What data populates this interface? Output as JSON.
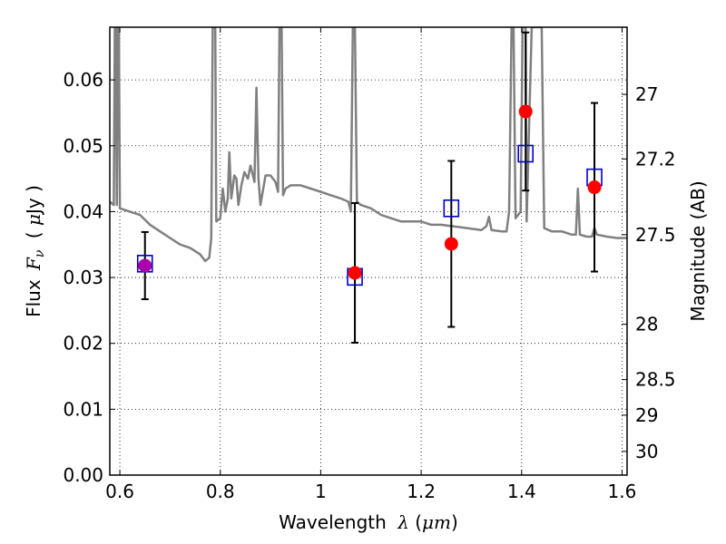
{
  "chart_data": {
    "type": "scatter",
    "xlabel": {
      "prefix": "Wavelength",
      "symbol": "λ",
      "unit_open": "(",
      "unit": "μm",
      "unit_close": ")"
    },
    "ylabel": {
      "prefix": "Flux",
      "symbol": "F",
      "symbol_sub": "ν",
      "unit_open": "(",
      "unit_mu": "μ",
      "unit": "Jy",
      "unit_close": ")"
    },
    "y2label": "Magnitude (AB)",
    "xlim": [
      0.58,
      1.61
    ],
    "ylim": [
      0.0,
      0.068
    ],
    "grid": true,
    "x_ticks": [
      {
        "value": 0.6,
        "label": "0.6"
      },
      {
        "value": 0.8,
        "label": "0.8"
      },
      {
        "value": 1.0,
        "label": "1"
      },
      {
        "value": 1.2,
        "label": "1.2"
      },
      {
        "value": 1.4,
        "label": "1.4"
      },
      {
        "value": 1.6,
        "label": "1.6"
      }
    ],
    "y_ticks": [
      {
        "value": 0.0,
        "label": "0.00"
      },
      {
        "value": 0.01,
        "label": "0.01"
      },
      {
        "value": 0.02,
        "label": "0.02"
      },
      {
        "value": 0.03,
        "label": "0.03"
      },
      {
        "value": 0.04,
        "label": "0.04"
      },
      {
        "value": 0.05,
        "label": "0.05"
      },
      {
        "value": 0.06,
        "label": "0.06"
      }
    ],
    "y2_ticks": [
      {
        "flux": 0.0578,
        "label": "27"
      },
      {
        "flux": 0.048,
        "label": "27.2"
      },
      {
        "flux": 0.0365,
        "label": "27.5"
      },
      {
        "flux": 0.0229,
        "label": "28"
      },
      {
        "flux": 0.0145,
        "label": "28.5"
      },
      {
        "flux": 0.0091,
        "label": "29"
      },
      {
        "flux": 0.0036,
        "label": "30"
      }
    ],
    "model_spectrum": {
      "color": "#808080",
      "points": [
        [
          0.58,
          0.0415
        ],
        [
          0.588,
          0.041
        ],
        [
          0.59,
          0.068
        ],
        [
          0.592,
          0.068
        ],
        [
          0.594,
          0.041
        ],
        [
          0.596,
          0.068
        ],
        [
          0.598,
          0.068
        ],
        [
          0.6,
          0.0405
        ],
        [
          0.62,
          0.04
        ],
        [
          0.64,
          0.0395
        ],
        [
          0.66,
          0.038
        ],
        [
          0.68,
          0.037
        ],
        [
          0.7,
          0.036
        ],
        [
          0.72,
          0.035
        ],
        [
          0.74,
          0.0345
        ],
        [
          0.76,
          0.0335
        ],
        [
          0.77,
          0.0325
        ],
        [
          0.778,
          0.033
        ],
        [
          0.782,
          0.036
        ],
        [
          0.785,
          0.068
        ],
        [
          0.79,
          0.068
        ],
        [
          0.792,
          0.0385
        ],
        [
          0.8,
          0.039
        ],
        [
          0.805,
          0.0435
        ],
        [
          0.81,
          0.04
        ],
        [
          0.815,
          0.042
        ],
        [
          0.818,
          0.049
        ],
        [
          0.822,
          0.042
        ],
        [
          0.828,
          0.0455
        ],
        [
          0.832,
          0.045
        ],
        [
          0.836,
          0.041
        ],
        [
          0.842,
          0.044
        ],
        [
          0.848,
          0.046
        ],
        [
          0.855,
          0.045
        ],
        [
          0.86,
          0.047
        ],
        [
          0.865,
          0.0455
        ],
        [
          0.868,
          0.0445
        ],
        [
          0.872,
          0.0588
        ],
        [
          0.876,
          0.045
        ],
        [
          0.88,
          0.041
        ],
        [
          0.89,
          0.0455
        ],
        [
          0.9,
          0.0455
        ],
        [
          0.91,
          0.0445
        ],
        [
          0.915,
          0.043
        ],
        [
          0.918,
          0.068
        ],
        [
          0.922,
          0.068
        ],
        [
          0.925,
          0.0425
        ],
        [
          0.93,
          0.0435
        ],
        [
          0.94,
          0.044
        ],
        [
          0.96,
          0.044
        ],
        [
          0.98,
          0.0435
        ],
        [
          1.0,
          0.043
        ],
        [
          1.02,
          0.0425
        ],
        [
          1.04,
          0.042
        ],
        [
          1.055,
          0.0415
        ],
        [
          1.06,
          0.04
        ],
        [
          1.064,
          0.068
        ],
        [
          1.068,
          0.068
        ],
        [
          1.072,
          0.0415
        ],
        [
          1.08,
          0.041
        ],
        [
          1.1,
          0.0405
        ],
        [
          1.12,
          0.0395
        ],
        [
          1.14,
          0.039
        ],
        [
          1.16,
          0.0385
        ],
        [
          1.18,
          0.0385
        ],
        [
          1.2,
          0.0385
        ],
        [
          1.22,
          0.038
        ],
        [
          1.24,
          0.038
        ],
        [
          1.26,
          0.0378
        ],
        [
          1.28,
          0.0376
        ],
        [
          1.3,
          0.0374
        ],
        [
          1.32,
          0.0372
        ],
        [
          1.33,
          0.0378
        ],
        [
          1.335,
          0.0392
        ],
        [
          1.34,
          0.0372
        ],
        [
          1.36,
          0.037
        ],
        [
          1.37,
          0.037
        ],
        [
          1.375,
          0.04
        ],
        [
          1.38,
          0.068
        ],
        [
          1.384,
          0.068
        ],
        [
          1.388,
          0.039
        ],
        [
          1.398,
          0.04
        ],
        [
          1.402,
          0.068
        ],
        [
          1.408,
          0.068
        ],
        [
          1.41,
          0.0385
        ],
        [
          1.42,
          0.068
        ],
        [
          1.44,
          0.068
        ],
        [
          1.445,
          0.0375
        ],
        [
          1.46,
          0.037
        ],
        [
          1.48,
          0.037
        ],
        [
          1.5,
          0.0365
        ],
        [
          1.508,
          0.0365
        ],
        [
          1.512,
          0.0435
        ],
        [
          1.516,
          0.0365
        ],
        [
          1.53,
          0.0362
        ],
        [
          1.54,
          0.0362
        ],
        [
          1.545,
          0.0375
        ],
        [
          1.55,
          0.0365
        ],
        [
          1.57,
          0.0362
        ],
        [
          1.59,
          0.036
        ],
        [
          1.61,
          0.036
        ]
      ]
    },
    "series": [
      {
        "marker": "open-square",
        "color": "#0000cc",
        "points": [
          {
            "x": 0.65,
            "y": 0.0321
          },
          {
            "x": 1.068,
            "y": 0.0301
          },
          {
            "x": 1.26,
            "y": 0.0405
          },
          {
            "x": 1.408,
            "y": 0.0488
          },
          {
            "x": 1.545,
            "y": 0.0452
          }
        ]
      },
      {
        "marker": "filled-circle",
        "color": "#ff0000",
        "points": [
          {
            "x": 0.65,
            "y": 0.0318,
            "err": 0.0051
          },
          {
            "x": 1.068,
            "y": 0.0307,
            "err": 0.0106
          },
          {
            "x": 1.26,
            "y": 0.0351,
            "err": 0.0126
          },
          {
            "x": 1.408,
            "y": 0.0552,
            "err": 0.012
          },
          {
            "x": 1.545,
            "y": 0.0437,
            "err": 0.0128
          }
        ]
      }
    ],
    "overlap_color": "#aa00aa",
    "errorbar_color": "#000000"
  }
}
